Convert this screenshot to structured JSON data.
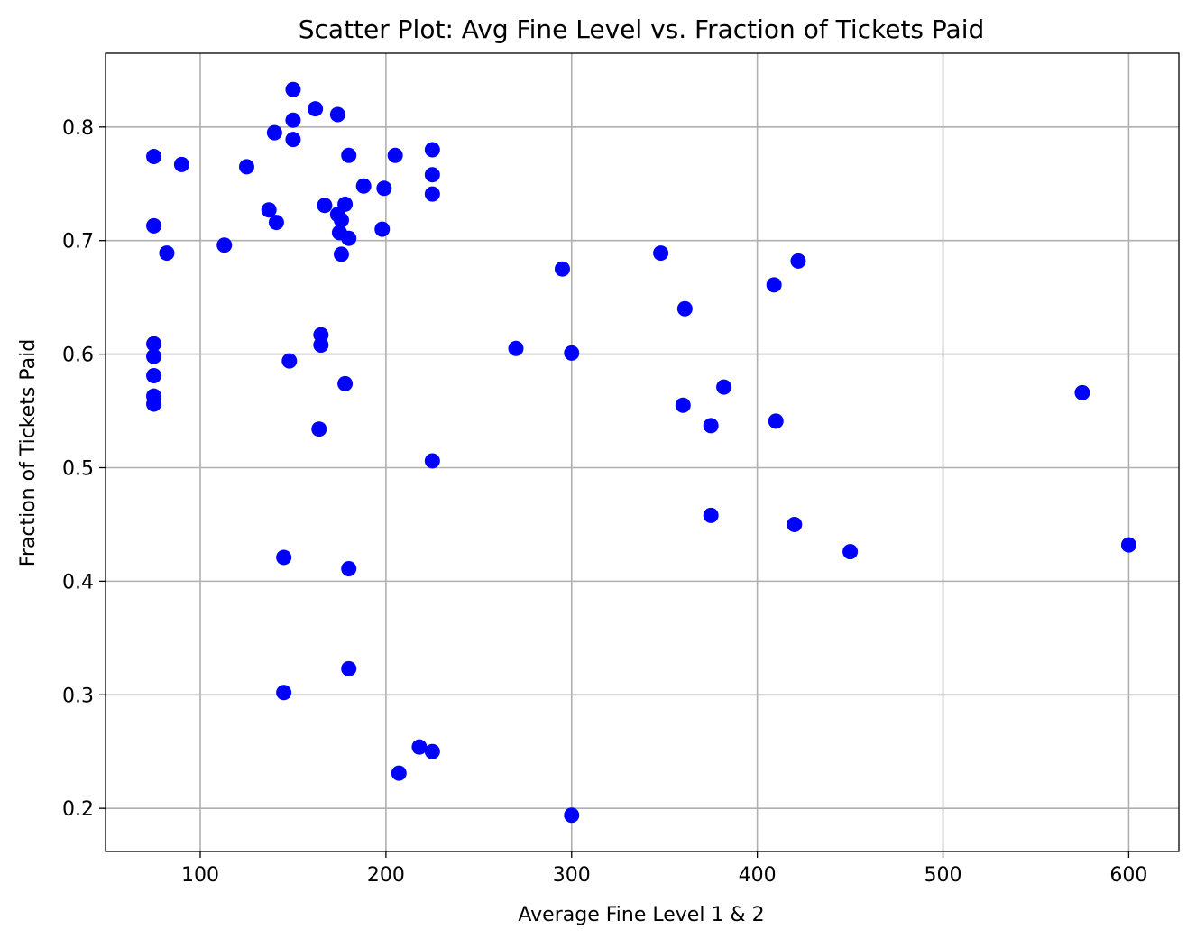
{
  "chart_data": {
    "type": "scatter",
    "title": "Scatter Plot: Avg Fine Level vs. Fraction of Tickets Paid",
    "xlabel": "Average Fine Level 1 & 2",
    "ylabel": "Fraction of Tickets Paid",
    "xlim": [
      49,
      627
    ],
    "ylim": [
      0.162,
      0.865
    ],
    "xticks": [
      100,
      200,
      300,
      400,
      500,
      600
    ],
    "yticks": [
      0.2,
      0.3,
      0.4,
      0.5,
      0.6,
      0.7,
      0.8
    ],
    "xtick_labels": [
      "100",
      "200",
      "300",
      "400",
      "500",
      "600"
    ],
    "ytick_labels": [
      "0.2",
      "0.3",
      "0.4",
      "0.5",
      "0.6",
      "0.7",
      "0.8"
    ],
    "grid": true,
    "marker_color": "#0000ff",
    "points": [
      {
        "x": 75,
        "y": 0.774
      },
      {
        "x": 75,
        "y": 0.713
      },
      {
        "x": 75,
        "y": 0.609
      },
      {
        "x": 75,
        "y": 0.598
      },
      {
        "x": 75,
        "y": 0.581
      },
      {
        "x": 75,
        "y": 0.563
      },
      {
        "x": 75,
        "y": 0.556
      },
      {
        "x": 82,
        "y": 0.689
      },
      {
        "x": 90,
        "y": 0.767
      },
      {
        "x": 113,
        "y": 0.696
      },
      {
        "x": 125,
        "y": 0.765
      },
      {
        "x": 137,
        "y": 0.727
      },
      {
        "x": 140,
        "y": 0.795
      },
      {
        "x": 141,
        "y": 0.716
      },
      {
        "x": 145,
        "y": 0.421
      },
      {
        "x": 145,
        "y": 0.302
      },
      {
        "x": 148,
        "y": 0.594
      },
      {
        "x": 150,
        "y": 0.833
      },
      {
        "x": 150,
        "y": 0.806
      },
      {
        "x": 150,
        "y": 0.789
      },
      {
        "x": 162,
        "y": 0.816
      },
      {
        "x": 164,
        "y": 0.534
      },
      {
        "x": 165,
        "y": 0.617
      },
      {
        "x": 165,
        "y": 0.608
      },
      {
        "x": 167,
        "y": 0.731
      },
      {
        "x": 174,
        "y": 0.811
      },
      {
        "x": 174,
        "y": 0.723
      },
      {
        "x": 175,
        "y": 0.707
      },
      {
        "x": 176,
        "y": 0.718
      },
      {
        "x": 176,
        "y": 0.688
      },
      {
        "x": 178,
        "y": 0.732
      },
      {
        "x": 178,
        "y": 0.574
      },
      {
        "x": 180,
        "y": 0.775
      },
      {
        "x": 180,
        "y": 0.702
      },
      {
        "x": 180,
        "y": 0.411
      },
      {
        "x": 180,
        "y": 0.323
      },
      {
        "x": 188,
        "y": 0.748
      },
      {
        "x": 198,
        "y": 0.71
      },
      {
        "x": 199,
        "y": 0.746
      },
      {
        "x": 205,
        "y": 0.775
      },
      {
        "x": 207,
        "y": 0.231
      },
      {
        "x": 218,
        "y": 0.254
      },
      {
        "x": 225,
        "y": 0.78
      },
      {
        "x": 225,
        "y": 0.758
      },
      {
        "x": 225,
        "y": 0.741
      },
      {
        "x": 225,
        "y": 0.506
      },
      {
        "x": 225,
        "y": 0.25
      },
      {
        "x": 270,
        "y": 0.605
      },
      {
        "x": 295,
        "y": 0.675
      },
      {
        "x": 300,
        "y": 0.601
      },
      {
        "x": 300,
        "y": 0.194
      },
      {
        "x": 348,
        "y": 0.689
      },
      {
        "x": 360,
        "y": 0.555
      },
      {
        "x": 361,
        "y": 0.64
      },
      {
        "x": 375,
        "y": 0.537
      },
      {
        "x": 375,
        "y": 0.458
      },
      {
        "x": 382,
        "y": 0.571
      },
      {
        "x": 409,
        "y": 0.661
      },
      {
        "x": 410,
        "y": 0.541
      },
      {
        "x": 420,
        "y": 0.45
      },
      {
        "x": 422,
        "y": 0.682
      },
      {
        "x": 450,
        "y": 0.426
      },
      {
        "x": 575,
        "y": 0.566
      },
      {
        "x": 600,
        "y": 0.432
      }
    ]
  }
}
